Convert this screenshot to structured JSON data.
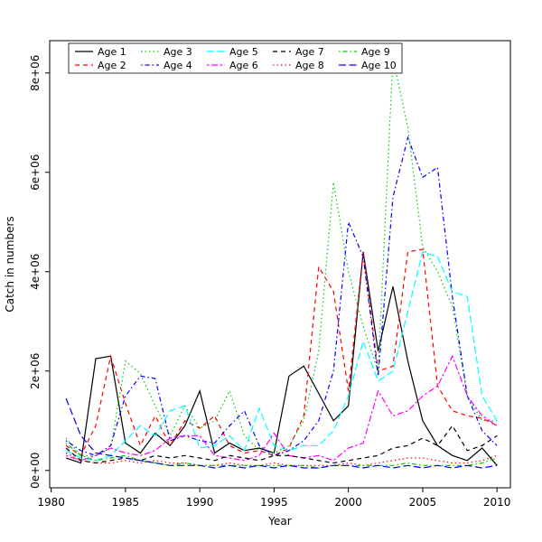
{
  "figure": {
    "background": "#ffffff",
    "axis_color": "#000000"
  },
  "chart_data": {
    "type": "line",
    "title": "",
    "xlabel": "Year",
    "ylabel": "Catch in numbers",
    "xlim": [
      1979.9,
      2010.9
    ],
    "ylim": [
      -350000,
      8650000
    ],
    "grid": false,
    "legend_position": "top-left-inside",
    "legend_columns": 5,
    "xticks": {
      "values": [
        1980,
        1985,
        1990,
        1995,
        2000,
        2005,
        2010
      ],
      "labels": [
        "1980",
        "1985",
        "1990",
        "1995",
        "2000",
        "2005",
        "2010"
      ]
    },
    "yticks": {
      "values": [
        0,
        2000000,
        4000000,
        6000000,
        8000000
      ],
      "labels": [
        "0e+00",
        "2e+06",
        "4e+06",
        "6e+06",
        "8e+06"
      ]
    },
    "x": [
      1981,
      1982,
      1983,
      1984,
      1985,
      1986,
      1987,
      1988,
      1989,
      1990,
      1991,
      1992,
      1993,
      1994,
      1995,
      1996,
      1997,
      1998,
      1999,
      2000,
      2001,
      2002,
      2003,
      2004,
      2005,
      2006,
      2007,
      2008,
      2009,
      2010
    ],
    "series": [
      {
        "name": "Age 1",
        "color": "#000000",
        "linetype": "solid",
        "values": [
          250000,
          150000,
          2250000,
          2300000,
          550000,
          350000,
          750000,
          500000,
          900000,
          1600000,
          350000,
          550000,
          400000,
          450000,
          350000,
          1900000,
          2100000,
          1550000,
          1000000,
          1300000,
          4400000,
          2400000,
          3700000,
          2200000,
          1000000,
          500000,
          300000,
          200000,
          450000,
          100000
        ]
      },
      {
        "name": "Age 2",
        "color": "#FF0000",
        "linetype": "dashed",
        "values": [
          500000,
          300000,
          900000,
          2300000,
          1350000,
          500000,
          1100000,
          500000,
          1000000,
          850000,
          1100000,
          500000,
          350000,
          400000,
          300000,
          450000,
          1100000,
          4100000,
          3600000,
          1600000,
          4400000,
          2000000,
          2100000,
          4400000,
          4450000,
          1700000,
          1200000,
          1100000,
          1050000,
          900000
        ]
      },
      {
        "name": "Age 3",
        "color": "#00CC00",
        "linetype": "dotted",
        "values": [
          650000,
          300000,
          300000,
          450000,
          2200000,
          1950000,
          1300000,
          700000,
          1300000,
          850000,
          1000000,
          1600000,
          700000,
          400000,
          350000,
          500000,
          1000000,
          2400000,
          5800000,
          4000000,
          2900000,
          2000000,
          8300000,
          6900000,
          4500000,
          4000000,
          3300000,
          1500000,
          1000000,
          1000000
        ]
      },
      {
        "name": "Age 4",
        "color": "#0000FF",
        "linetype": "dotdash",
        "values": [
          600000,
          400000,
          300000,
          500000,
          1500000,
          1900000,
          1850000,
          600000,
          700000,
          600000,
          550000,
          900000,
          1200000,
          500000,
          300000,
          400000,
          600000,
          1000000,
          2000000,
          5000000,
          4300000,
          1900000,
          5500000,
          6700000,
          5900000,
          6100000,
          3500000,
          1500000,
          800000,
          500000
        ]
      },
      {
        "name": "Age 5",
        "color": "#00FFFF",
        "linetype": "longdash",
        "values": [
          400000,
          250000,
          200000,
          300000,
          600000,
          900000,
          700000,
          1200000,
          1300000,
          450000,
          500000,
          700000,
          400000,
          1250000,
          500000,
          400000,
          500000,
          500000,
          800000,
          1500000,
          2600000,
          1800000,
          2000000,
          3200000,
          4400000,
          4300000,
          3600000,
          3500000,
          1500000,
          1000000
        ]
      },
      {
        "name": "Age 6",
        "color": "#FF00FF",
        "linetype": "twodash",
        "values": [
          300000,
          200000,
          300000,
          450000,
          350000,
          300000,
          400000,
          650000,
          700000,
          700000,
          300000,
          250000,
          200000,
          300000,
          750000,
          300000,
          250000,
          300000,
          200000,
          450000,
          550000,
          1600000,
          1100000,
          1200000,
          1500000,
          1700000,
          2300000,
          1500000,
          1100000,
          900000
        ]
      },
      {
        "name": "Age 7",
        "color": "#000000",
        "linetype": "dashed",
        "values": [
          450000,
          200000,
          150000,
          200000,
          250000,
          200000,
          300000,
          250000,
          300000,
          250000,
          200000,
          300000,
          250000,
          200000,
          300000,
          300000,
          250000,
          200000,
          150000,
          200000,
          250000,
          300000,
          450000,
          500000,
          650000,
          500000,
          900000,
          400000,
          500000,
          700000
        ]
      },
      {
        "name": "Age 8",
        "color": "#FF0000",
        "linetype": "dotted",
        "values": [
          350000,
          200000,
          150000,
          150000,
          200000,
          150000,
          200000,
          150000,
          150000,
          100000,
          100000,
          150000,
          100000,
          100000,
          150000,
          100000,
          100000,
          100000,
          100000,
          150000,
          100000,
          150000,
          200000,
          250000,
          250000,
          200000,
          150000,
          150000,
          200000,
          300000
        ]
      },
      {
        "name": "Age 9",
        "color": "#00CC00",
        "linetype": "dotdash",
        "values": [
          550000,
          300000,
          200000,
          250000,
          300000,
          200000,
          150000,
          100000,
          150000,
          100000,
          100000,
          100000,
          100000,
          100000,
          100000,
          100000,
          100000,
          50000,
          100000,
          100000,
          100000,
          100000,
          100000,
          150000,
          100000,
          100000,
          100000,
          100000,
          150000,
          250000
        ]
      },
      {
        "name": "Age 10",
        "color": "#0000FF",
        "linetype": "longdash",
        "values": [
          1450000,
          700000,
          350000,
          300000,
          250000,
          200000,
          150000,
          100000,
          100000,
          100000,
          50000,
          100000,
          50000,
          100000,
          50000,
          100000,
          50000,
          50000,
          100000,
          100000,
          50000,
          100000,
          50000,
          100000,
          50000,
          100000,
          50000,
          100000,
          50000,
          100000
        ]
      }
    ]
  }
}
